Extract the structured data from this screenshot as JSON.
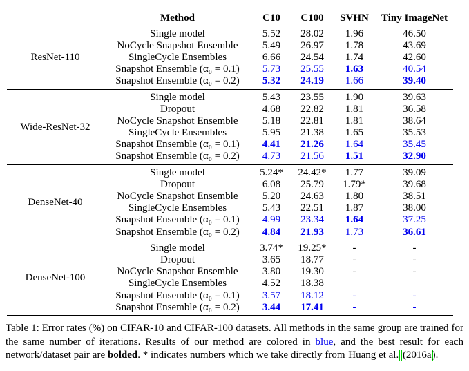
{
  "colors": {
    "result_blue": "#0000EE",
    "citation_box_green": "#00CC00",
    "text_black": "#000000",
    "background": "#FFFFFF"
  },
  "table": {
    "columns": {
      "network": "",
      "method": "Method",
      "c10": "C10",
      "c100": "C100",
      "svhn": "SVHN",
      "tiny": "Tiny ImageNet"
    },
    "groups": [
      {
        "network": "ResNet-110",
        "rows": [
          {
            "method": "Single model",
            "cells": [
              {
                "t": "5.52"
              },
              {
                "t": "28.02"
              },
              {
                "t": "1.96"
              },
              {
                "t": "46.50"
              }
            ]
          },
          {
            "method": "NoCycle Snapshot Ensemble",
            "cells": [
              {
                "t": "5.49"
              },
              {
                "t": "26.97"
              },
              {
                "t": "1.78"
              },
              {
                "t": "43.69"
              }
            ]
          },
          {
            "method": "SingleCycle Ensembles",
            "cells": [
              {
                "t": "6.66"
              },
              {
                "t": "24.54"
              },
              {
                "t": "1.74"
              },
              {
                "t": "42.60"
              }
            ]
          },
          {
            "method": "Snapshot Ensemble (α₀ = 0.1)",
            "cells": [
              {
                "t": "5.73",
                "blue": true
              },
              {
                "t": "25.55",
                "blue": true
              },
              {
                "t": "1.63",
                "blue": true,
                "bold": true
              },
              {
                "t": "40.54",
                "blue": true
              }
            ]
          },
          {
            "method": "Snapshot Ensemble (α₀ = 0.2)",
            "cells": [
              {
                "t": "5.32",
                "blue": true,
                "bold": true
              },
              {
                "t": "24.19",
                "blue": true,
                "bold": true
              },
              {
                "t": "1.66",
                "blue": true
              },
              {
                "t": "39.40",
                "blue": true,
                "bold": true
              }
            ]
          }
        ]
      },
      {
        "network": "Wide-ResNet-32",
        "rows": [
          {
            "method": "Single model",
            "cells": [
              {
                "t": "5.43"
              },
              {
                "t": "23.55"
              },
              {
                "t": "1.90"
              },
              {
                "t": "39.63"
              }
            ]
          },
          {
            "method": "Dropout",
            "cells": [
              {
                "t": "4.68"
              },
              {
                "t": "22.82"
              },
              {
                "t": "1.81"
              },
              {
                "t": "36.58"
              }
            ]
          },
          {
            "method": "NoCycle Snapshot Ensemble",
            "cells": [
              {
                "t": "5.18"
              },
              {
                "t": "22.81"
              },
              {
                "t": "1.81"
              },
              {
                "t": "38.64"
              }
            ]
          },
          {
            "method": "SingleCycle Ensembles",
            "cells": [
              {
                "t": "5.95"
              },
              {
                "t": "21.38"
              },
              {
                "t": "1.65"
              },
              {
                "t": "35.53"
              }
            ]
          },
          {
            "method": "Snapshot Ensemble (α₀ = 0.1)",
            "cells": [
              {
                "t": "4.41",
                "blue": true,
                "bold": true
              },
              {
                "t": "21.26",
                "blue": true,
                "bold": true
              },
              {
                "t": "1.64",
                "blue": true
              },
              {
                "t": "35.45",
                "blue": true
              }
            ]
          },
          {
            "method": "Snapshot Ensemble (α₀ = 0.2)",
            "cells": [
              {
                "t": "4.73",
                "blue": true
              },
              {
                "t": "21.56",
                "blue": true
              },
              {
                "t": "1.51",
                "blue": true,
                "bold": true
              },
              {
                "t": "32.90",
                "blue": true,
                "bold": true
              }
            ]
          }
        ]
      },
      {
        "network": "DenseNet-40",
        "rows": [
          {
            "method": "Single model",
            "cells": [
              {
                "t": "5.24*"
              },
              {
                "t": "24.42*"
              },
              {
                "t": "1.77"
              },
              {
                "t": "39.09"
              }
            ]
          },
          {
            "method": "Dropout",
            "cells": [
              {
                "t": "6.08"
              },
              {
                "t": "25.79"
              },
              {
                "t": "1.79*"
              },
              {
                "t": "39.68"
              }
            ]
          },
          {
            "method": "NoCycle Snapshot Ensemble",
            "cells": [
              {
                "t": "5.20"
              },
              {
                "t": "24.63"
              },
              {
                "t": "1.80"
              },
              {
                "t": "38.51"
              }
            ]
          },
          {
            "method": "SingleCycle Ensembles",
            "cells": [
              {
                "t": "5.43"
              },
              {
                "t": "22.51"
              },
              {
                "t": "1.87"
              },
              {
                "t": "38.00"
              }
            ]
          },
          {
            "method": "Snapshot Ensemble (α₀ = 0.1)",
            "cells": [
              {
                "t": "4.99",
                "blue": true
              },
              {
                "t": "23.34",
                "blue": true
              },
              {
                "t": "1.64",
                "blue": true,
                "bold": true
              },
              {
                "t": "37.25",
                "blue": true
              }
            ]
          },
          {
            "method": "Snapshot Ensemble (α₀ = 0.2)",
            "cells": [
              {
                "t": "4.84",
                "blue": true,
                "bold": true
              },
              {
                "t": "21.93",
                "blue": true,
                "bold": true
              },
              {
                "t": "1.73",
                "blue": true
              },
              {
                "t": "36.61",
                "blue": true,
                "bold": true
              }
            ]
          }
        ]
      },
      {
        "network": "DenseNet-100",
        "rows": [
          {
            "method": "Single model",
            "cells": [
              {
                "t": "3.74*"
              },
              {
                "t": "19.25*"
              },
              {
                "t": "-"
              },
              {
                "t": "-"
              }
            ]
          },
          {
            "method": "Dropout",
            "cells": [
              {
                "t": "3.65"
              },
              {
                "t": "18.77"
              },
              {
                "t": "-"
              },
              {
                "t": "-"
              }
            ]
          },
          {
            "method": "NoCycle Snapshot Ensemble",
            "cells": [
              {
                "t": "3.80"
              },
              {
                "t": "19.30"
              },
              {
                "t": "-"
              },
              {
                "t": "-"
              }
            ]
          },
          {
            "method": "SingleCycle Ensembles",
            "cells": [
              {
                "t": "4.52"
              },
              {
                "t": "18.38"
              },
              {
                "t": ""
              },
              {
                "t": ""
              }
            ]
          },
          {
            "method": "Snapshot Ensemble (α₀ = 0.1)",
            "cells": [
              {
                "t": "3.57",
                "blue": true
              },
              {
                "t": "18.12",
                "blue": true
              },
              {
                "t": "-",
                "blue": true
              },
              {
                "t": "-",
                "blue": true
              }
            ]
          },
          {
            "method": "Snapshot Ensemble (α₀ = 0.2)",
            "cells": [
              {
                "t": "3.44",
                "blue": true,
                "bold": true
              },
              {
                "t": "17.41",
                "blue": true,
                "bold": true
              },
              {
                "t": "-",
                "blue": true
              },
              {
                "t": "-",
                "blue": true
              }
            ]
          }
        ]
      }
    ]
  },
  "caption": {
    "segments": [
      {
        "t": "Table 1: ",
        "name": "caption-label"
      },
      {
        "t": "Error rates (%) on CIFAR-10 and CIFAR-100 datasets. All methods in the same group are trained for the same number of iterations. Results of our method are colored in ",
        "name": "caption-text"
      },
      {
        "t": "blue",
        "color": "blue",
        "name": "caption-word-blue"
      },
      {
        "t": ", and the best result for each network/dataset pair are ",
        "name": "caption-text"
      },
      {
        "t": "bolded",
        "bold": true,
        "name": "caption-word-bolded"
      },
      {
        "t": ". * indicates numbers which we take directly from ",
        "name": "caption-text"
      },
      {
        "t": "Huang et al.",
        "box": true,
        "name": "citation-link-huang"
      },
      {
        "t": " ",
        "name": "caption-text"
      },
      {
        "t": "(2016a",
        "box": true,
        "name": "citation-link-year"
      },
      {
        "t": ").",
        "name": "caption-text"
      }
    ]
  }
}
